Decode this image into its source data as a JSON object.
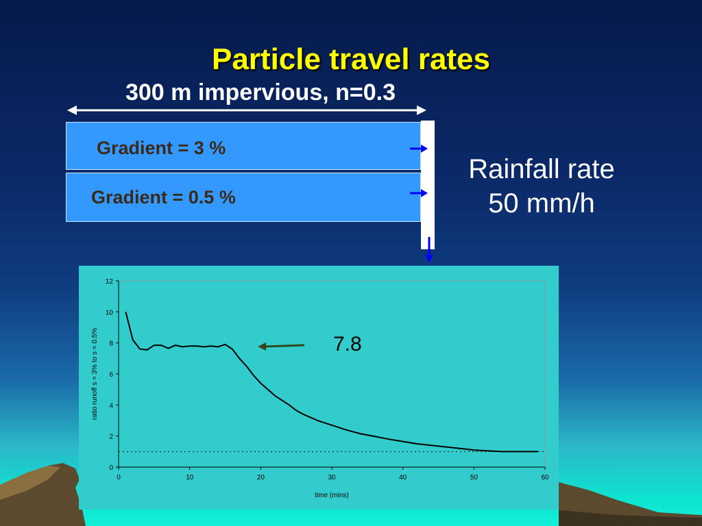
{
  "slide": {
    "title": "Particle travel rates",
    "subtitle": "300 m impervious, n=0.3",
    "bars": [
      {
        "label": "Gradient = 3 %"
      },
      {
        "label": "Gradient = 0.5 %"
      }
    ],
    "rainfall": {
      "line1": "Rainfall rate",
      "line2": "50 mm/h"
    },
    "annotation": "7.8",
    "colors": {
      "title": "#ffff00",
      "bar": "#3399ff",
      "chart_bg": "#33cccc",
      "arrow": "#0000ff"
    }
  },
  "chart_data": {
    "type": "line",
    "xlabel": "time (mins)",
    "ylabel": "ratio runoff s = 3% to s = 0.5%",
    "xlim": [
      0,
      60
    ],
    "ylim": [
      0,
      12
    ],
    "xticks": [
      0,
      10,
      20,
      30,
      40,
      50,
      60
    ],
    "yticks": [
      0,
      2,
      4,
      6,
      8,
      10,
      12
    ],
    "grid": false,
    "series": [
      {
        "style": "solid",
        "x": [
          1,
          2,
          3,
          4,
          5,
          6,
          7,
          8,
          9,
          10,
          11,
          12,
          13,
          14,
          15,
          16,
          17,
          18,
          19,
          20,
          21,
          22,
          23,
          24,
          25,
          26,
          27,
          28,
          29,
          30,
          32,
          34,
          36,
          38,
          40,
          42,
          44,
          46,
          48,
          50,
          52,
          54,
          56,
          58,
          59
        ],
        "y": [
          10.0,
          8.2,
          7.6,
          7.55,
          7.85,
          7.85,
          7.65,
          7.85,
          7.75,
          7.8,
          7.8,
          7.75,
          7.8,
          7.75,
          7.9,
          7.6,
          7.0,
          6.5,
          5.9,
          5.4,
          5.0,
          4.6,
          4.3,
          4.0,
          3.65,
          3.4,
          3.2,
          3.0,
          2.85,
          2.7,
          2.4,
          2.15,
          1.98,
          1.8,
          1.65,
          1.5,
          1.4,
          1.3,
          1.2,
          1.1,
          1.05,
          1.0,
          1.0,
          1.0,
          1.0
        ]
      },
      {
        "style": "dotted",
        "x": [
          0,
          60
        ],
        "y": [
          1.0,
          1.0
        ]
      }
    ]
  }
}
